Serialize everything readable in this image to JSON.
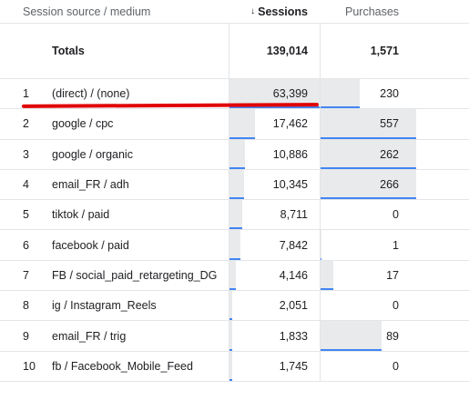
{
  "header": {
    "source_label": "Session source / medium",
    "sessions_label": "Sessions",
    "purchases_label": "Purchases",
    "sort_arrow": "↓"
  },
  "totals": {
    "label": "Totals",
    "sessions": "139,014",
    "purchases": "1,571"
  },
  "rows": [
    {
      "idx": "1",
      "source": "(direct) / (none)",
      "sessions": "63,399",
      "purchases": "230",
      "ses_frac": 1.0,
      "pur_frac": 0.41
    },
    {
      "idx": "2",
      "source": "google / cpc",
      "sessions": "17,462",
      "purchases": "557",
      "ses_frac": 0.275,
      "pur_frac": 1.0
    },
    {
      "idx": "3",
      "source": "google / organic",
      "sessions": "10,886",
      "purchases": "262",
      "ses_frac": 0.172,
      "pur_frac": 1.0
    },
    {
      "idx": "4",
      "source": "email_FR / adh",
      "sessions": "10,345",
      "purchases": "266",
      "ses_frac": 0.163,
      "pur_frac": 1.0
    },
    {
      "idx": "5",
      "source": "tiktok / paid",
      "sessions": "8,711",
      "purchases": "0",
      "ses_frac": 0.137,
      "pur_frac": 0
    },
    {
      "idx": "6",
      "source": "facebook / paid",
      "sessions": "7,842",
      "purchases": "1",
      "ses_frac": 0.124,
      "pur_frac": 0.002
    },
    {
      "idx": "7",
      "source": "FB / social_paid_retargeting_DG",
      "sessions": "4,146",
      "purchases": "17",
      "ses_frac": 0.065,
      "pur_frac": 0.13
    },
    {
      "idx": "8",
      "source": "ig / Instagram_Reels",
      "sessions": "2,051",
      "purchases": "0",
      "ses_frac": 0.032,
      "pur_frac": 0
    },
    {
      "idx": "9",
      "source": "email_FR / trig",
      "sessions": "1,833",
      "purchases": "89",
      "ses_frac": 0.029,
      "pur_frac": 0.64
    },
    {
      "idx": "10",
      "source": "fb / Facebook_Mobile_Feed",
      "sessions": "1,745",
      "purchases": "0",
      "ses_frac": 0.028,
      "pur_frac": 0
    }
  ],
  "colors": {
    "bar_fill": "#e9eaeb",
    "bar_line": "#4285f4",
    "annotation": "#e00000"
  }
}
